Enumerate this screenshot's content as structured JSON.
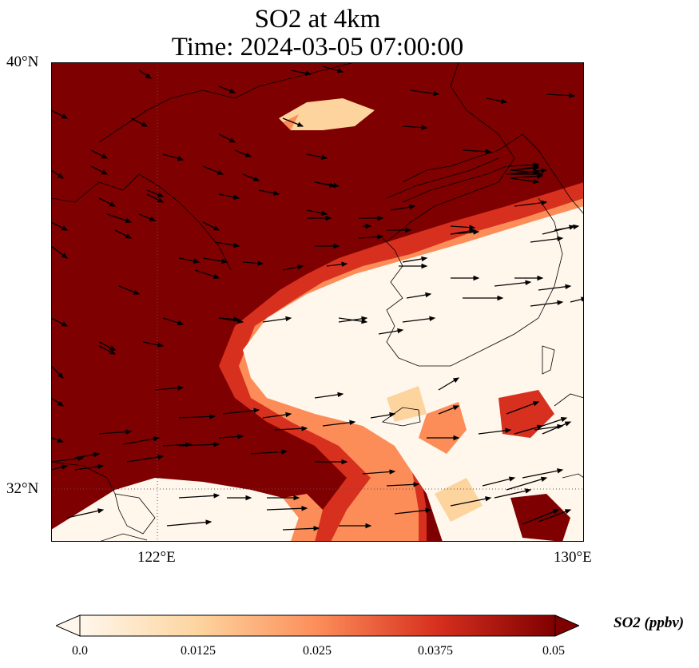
{
  "title": {
    "line1": "SO2 at 4km",
    "line2": "Time: 2024-03-05 07:00:00"
  },
  "map": {
    "lon_range": [
      120,
      130
    ],
    "lat_range": [
      31,
      40
    ],
    "lat_ticks": [
      "40°N",
      "32°N"
    ],
    "lon_ticks": [
      "122°E",
      "130°E"
    ],
    "gridlines": "dotted at 122°E and 32°N",
    "field": "SO2 concentration (high over China mainland/Yellow Sea north & west, low over Korea, East China Sea)",
    "vectors": "wind arrows pointing generally east"
  },
  "colorbar": {
    "colormap": "OrRd",
    "ticks": [
      "0.0",
      "0.0125",
      "0.025",
      "0.0375",
      "0.05"
    ],
    "label": "SO2 (ppbv)",
    "colors": [
      "#fff7ec",
      "#fdd49e",
      "#fc8d59",
      "#d7301f",
      "#7f0000"
    ]
  }
}
